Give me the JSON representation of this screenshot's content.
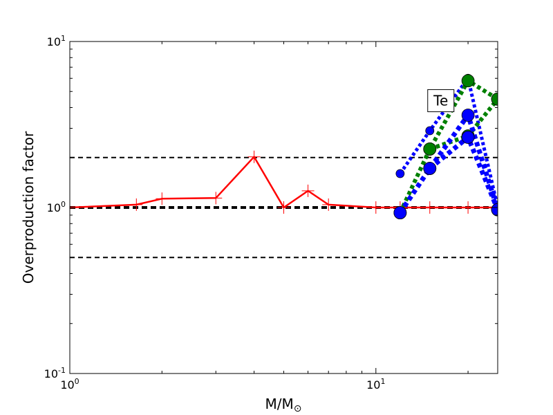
{
  "chart_data": {
    "type": "line",
    "title": "",
    "xlabel": "M/M",
    "xlabel_symbol": "⊙",
    "ylabel": "Overproduction factor",
    "xscale": "log",
    "yscale": "log",
    "xlim": [
      1,
      25
    ],
    "ylim": [
      0.1,
      10
    ],
    "x_ticks": [
      {
        "value": 1,
        "base": "10",
        "exp": "0"
      },
      {
        "value": 10,
        "base": "10",
        "exp": "1"
      }
    ],
    "y_ticks": [
      {
        "value": 0.1,
        "base": "10",
        "exp": "-1"
      },
      {
        "value": 1,
        "base": "10",
        "exp": "0"
      },
      {
        "value": 10,
        "base": "10",
        "exp": "1"
      }
    ],
    "grid": false,
    "legend": "none",
    "reference_lines": [
      {
        "y": 2,
        "style": "dashed",
        "color": "#000000",
        "width": 2
      },
      {
        "y": 1,
        "style": "dashed",
        "color": "#000000",
        "width": 4
      },
      {
        "y": 0.5,
        "style": "dashed",
        "color": "#000000",
        "width": 2
      }
    ],
    "annotation": {
      "text": "Te",
      "x": 16.3,
      "y": 4.4
    },
    "series": [
      {
        "color": "#ff0000",
        "line": "solid",
        "width": 2.5,
        "marker": "plus",
        "x": [
          1,
          1.65,
          2,
          3,
          4,
          5,
          6,
          7,
          10,
          12,
          15,
          20,
          25
        ],
        "y": [
          1.0,
          1.04,
          1.13,
          1.14,
          2.02,
          1.0,
          1.26,
          1.04,
          1.0,
          1.0,
          1.0,
          1.0,
          1.0
        ]
      },
      {
        "color": "#0000ff",
        "line": "dotted",
        "width": 5,
        "marker": "circle",
        "marker_size": 6,
        "x": [
          12,
          15,
          20,
          25
        ],
        "y": [
          1.6,
          2.9,
          6.0,
          1.0
        ]
      },
      {
        "color": "#008000",
        "line": "dotted",
        "width": 6,
        "marker": "circle",
        "marker_size": 9,
        "x": [
          12,
          15,
          20,
          25
        ],
        "y": [
          0.93,
          2.25,
          5.8,
          4.5
        ]
      },
      {
        "color": "#008000",
        "line": "dotted",
        "width": 6,
        "marker": "circle",
        "marker_size": 9,
        "x": [
          15,
          20,
          25
        ],
        "y": [
          2.25,
          2.7,
          4.5
        ]
      },
      {
        "color": "#0000ff",
        "line": "dotted",
        "width": 7,
        "marker": "circle",
        "marker_size": 9,
        "x": [
          12,
          15,
          20,
          25
        ],
        "y": [
          0.93,
          1.72,
          3.6,
          0.97
        ]
      },
      {
        "color": "#0000ff",
        "line": "dotted",
        "width": 7,
        "marker": "circle",
        "marker_size": 9,
        "x": [
          15,
          20,
          25
        ],
        "y": [
          1.72,
          2.65,
          0.97
        ]
      }
    ]
  }
}
